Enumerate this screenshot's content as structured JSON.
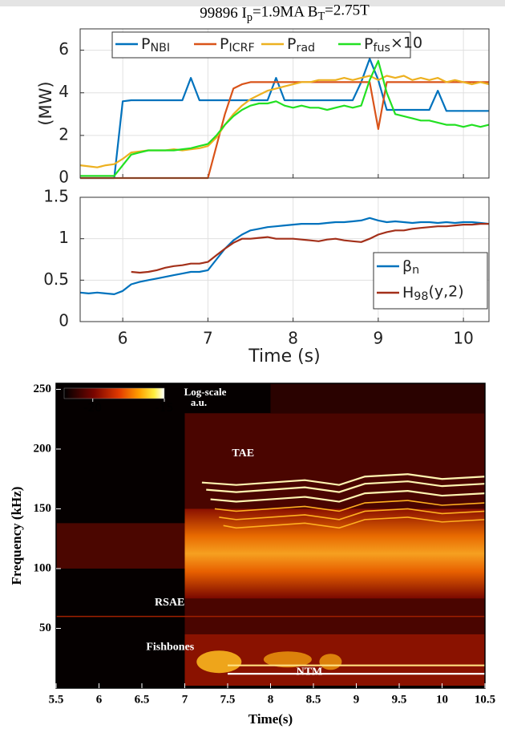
{
  "chart_data": [
    {
      "type": "line",
      "title": "99896 I_{p}=1.9MA B_{T}=2.75T",
      "ylabel": "(MW)",
      "x": [
        5.5,
        5.6,
        5.7,
        5.8,
        5.9,
        6.0,
        6.1,
        6.2,
        6.3,
        6.4,
        6.5,
        6.6,
        6.7,
        6.8,
        6.9,
        7.0,
        7.1,
        7.2,
        7.3,
        7.4,
        7.5,
        7.6,
        7.7,
        7.8,
        7.9,
        8.0,
        8.1,
        8.2,
        8.3,
        8.4,
        8.5,
        8.6,
        8.7,
        8.8,
        8.9,
        9.0,
        9.1,
        9.2,
        9.3,
        9.4,
        9.5,
        9.6,
        9.7,
        9.8,
        9.9,
        10.0,
        10.1,
        10.2,
        10.3
      ],
      "series": [
        {
          "name": "P_{NBI}",
          "color": "#0072bd",
          "values": [
            0,
            0,
            0,
            0,
            0,
            3.6,
            3.65,
            3.65,
            3.65,
            3.65,
            3.65,
            3.65,
            3.65,
            4.7,
            3.65,
            3.65,
            3.65,
            3.65,
            3.65,
            3.65,
            3.65,
            3.65,
            3.65,
            4.7,
            3.65,
            3.65,
            3.65,
            3.65,
            3.65,
            3.65,
            3.65,
            3.65,
            3.65,
            4.5,
            5.6,
            4.6,
            3.2,
            3.2,
            3.2,
            3.2,
            3.2,
            3.2,
            4.1,
            3.15,
            3.15,
            3.15,
            3.15,
            3.15,
            3.15
          ]
        },
        {
          "name": "P_{ICRF}",
          "color": "#d95319",
          "values": [
            0,
            0,
            0,
            0,
            0,
            0,
            0,
            0,
            0,
            0,
            0,
            0,
            0,
            0,
            0,
            0,
            1.5,
            3.0,
            4.2,
            4.4,
            4.5,
            4.5,
            4.5,
            4.5,
            4.5,
            4.5,
            4.5,
            4.5,
            4.5,
            4.5,
            4.5,
            4.5,
            4.5,
            4.5,
            4.5,
            2.3,
            4.5,
            4.5,
            4.5,
            4.5,
            4.5,
            4.5,
            4.5,
            4.5,
            4.5,
            4.5,
            4.5,
            4.5,
            4.5
          ]
        },
        {
          "name": "P_{rad}",
          "color": "#edb120",
          "values": [
            0.6,
            0.55,
            0.5,
            0.6,
            0.65,
            0.9,
            1.2,
            1.25,
            1.3,
            1.3,
            1.3,
            1.35,
            1.3,
            1.35,
            1.4,
            1.5,
            1.9,
            2.5,
            3.0,
            3.4,
            3.7,
            3.9,
            4.1,
            4.2,
            4.3,
            4.4,
            4.5,
            4.5,
            4.6,
            4.6,
            4.6,
            4.7,
            4.6,
            4.7,
            4.8,
            4.6,
            4.8,
            4.7,
            4.8,
            4.6,
            4.7,
            4.6,
            4.7,
            4.5,
            4.6,
            4.5,
            4.4,
            4.5,
            4.4
          ]
        },
        {
          "name": "P_{fus}×10",
          "color": "#22e022",
          "values": [
            0.1,
            0.1,
            0.1,
            0.1,
            0.1,
            0.6,
            1.1,
            1.2,
            1.3,
            1.3,
            1.3,
            1.3,
            1.35,
            1.4,
            1.5,
            1.6,
            2.0,
            2.5,
            2.9,
            3.2,
            3.4,
            3.5,
            3.5,
            3.6,
            3.4,
            3.3,
            3.4,
            3.3,
            3.3,
            3.2,
            3.3,
            3.4,
            3.3,
            3.4,
            4.6,
            5.5,
            4.0,
            3.0,
            2.9,
            2.8,
            2.7,
            2.7,
            2.6,
            2.5,
            2.5,
            2.4,
            2.5,
            2.4,
            2.5
          ]
        }
      ],
      "xlim": [
        5.5,
        10.3
      ],
      "xticks": [
        6,
        7,
        8,
        9,
        10
      ],
      "show_xtick_labels": false,
      "ylim": [
        0,
        7
      ],
      "yticks": [
        0,
        2,
        4,
        6
      ],
      "grid": true,
      "legend": "top"
    },
    {
      "type": "line",
      "xlabel": "Time (s)",
      "x": [
        5.5,
        5.6,
        5.7,
        5.8,
        5.9,
        6.0,
        6.1,
        6.2,
        6.3,
        6.4,
        6.5,
        6.6,
        6.7,
        6.8,
        6.9,
        7.0,
        7.1,
        7.2,
        7.3,
        7.4,
        7.5,
        7.6,
        7.7,
        7.8,
        7.9,
        8.0,
        8.1,
        8.2,
        8.3,
        8.4,
        8.5,
        8.6,
        8.7,
        8.8,
        8.9,
        9.0,
        9.1,
        9.2,
        9.3,
        9.4,
        9.5,
        9.6,
        9.7,
        9.8,
        9.9,
        10.0,
        10.1,
        10.2,
        10.3
      ],
      "series": [
        {
          "name": "β_{n}",
          "color": "#0072bd",
          "values": [
            0.35,
            0.34,
            0.35,
            0.34,
            0.33,
            0.37,
            0.45,
            0.48,
            0.5,
            0.52,
            0.54,
            0.56,
            0.58,
            0.6,
            0.6,
            0.62,
            0.75,
            0.88,
            0.98,
            1.05,
            1.1,
            1.12,
            1.14,
            1.15,
            1.16,
            1.17,
            1.18,
            1.18,
            1.18,
            1.19,
            1.2,
            1.2,
            1.21,
            1.22,
            1.25,
            1.22,
            1.2,
            1.21,
            1.2,
            1.19,
            1.2,
            1.2,
            1.19,
            1.2,
            1.19,
            1.2,
            1.2,
            1.19,
            1.18
          ]
        },
        {
          "name": "H_{98}(y,2)",
          "color": "#a3301a",
          "values": [
            null,
            null,
            null,
            null,
            null,
            null,
            0.6,
            0.59,
            0.6,
            0.62,
            0.65,
            0.67,
            0.68,
            0.7,
            0.7,
            0.72,
            0.8,
            0.88,
            0.95,
            1.0,
            1.0,
            1.01,
            1.02,
            1.0,
            1.0,
            1.0,
            0.99,
            0.98,
            0.97,
            0.99,
            1.0,
            0.98,
            0.97,
            0.96,
            1.0,
            1.05,
            1.08,
            1.1,
            1.1,
            1.12,
            1.13,
            1.14,
            1.15,
            1.15,
            1.16,
            1.17,
            1.17,
            1.18,
            1.18
          ]
        }
      ],
      "xlim": [
        5.5,
        10.3
      ],
      "xticks": [
        6,
        7,
        8,
        9,
        10
      ],
      "show_xtick_labels": true,
      "ylim": [
        0,
        1.5
      ],
      "yticks": [
        0,
        0.5,
        1,
        1.5
      ],
      "grid": true,
      "legend": "lower right"
    },
    {
      "type": "spectrogram",
      "xlabel": "Time(s)",
      "ylabel": "Frequency (kHz)",
      "xlim": [
        5.5,
        10.5
      ],
      "xticks": [
        5.5,
        6,
        6.5,
        7,
        7.5,
        8,
        8.5,
        9,
        9.5,
        10,
        10.5
      ],
      "ylim": [
        0,
        255
      ],
      "yticks": [
        50,
        100,
        150,
        200,
        250
      ],
      "colorbar": {
        "clim": [
          -22,
          -15
        ],
        "ticks": [
          -20,
          -15
        ],
        "label": [
          "Log-scale",
          "a.u."
        ]
      },
      "annotations": [
        "TAE",
        "RSAE",
        "Fishbones",
        "NTM"
      ]
    }
  ]
}
